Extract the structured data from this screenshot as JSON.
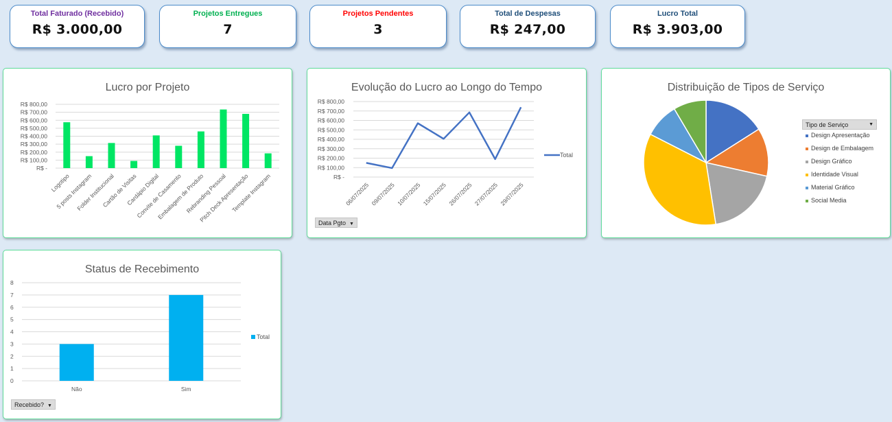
{
  "kpis": [
    {
      "label": "Total Faturado (Recebido)",
      "value": "R$ 3.000,00",
      "color": "#7030a0"
    },
    {
      "label": "Projetos Entregues",
      "value": "7",
      "color": "#00b050"
    },
    {
      "label": "Projetos Pendentes",
      "value": "3",
      "color": "#ff0000"
    },
    {
      "label": "Total de Despesas",
      "value": "R$ 247,00",
      "color": "#1f4e79"
    },
    {
      "label": "Lucro Total",
      "value": "R$ 3.903,00",
      "color": "#1f4e79"
    }
  ],
  "panels": {
    "lucro_projeto": {
      "title": "Lucro por Projeto"
    },
    "evolucao": {
      "title": "Evolução do Lucro ao Longo do Tempo",
      "legend": "Total",
      "filter": "Data Pgto"
    },
    "distribuicao": {
      "title": "Distribuição de Tipos de Serviço",
      "filter": "Tipo de Serviço"
    },
    "status": {
      "title": "Status de Recebimento",
      "legend": "Total",
      "filter": "Recebido?"
    }
  },
  "chart_data": [
    {
      "type": "bar",
      "title": "Lucro por Projeto",
      "categories": [
        "Logotipo",
        "5 posts Instagram",
        "Folder Institucional",
        "Cartão de Visitas",
        "Cardápio Digital",
        "Convite de Casamento",
        "Embalagem de Produto",
        "Rebranding Pessoal",
        "Pitch Deck Apresentação",
        "Template Instagram"
      ],
      "values": [
        575,
        150,
        315,
        90,
        410,
        280,
        460,
        735,
        680,
        185
      ],
      "yticks": [
        "R$ -",
        "R$ 100,00",
        "R$ 200,00",
        "R$ 300,00",
        "R$ 400,00",
        "R$ 500,00",
        "R$ 600,00",
        "R$ 700,00",
        "R$ 800,00"
      ],
      "ylim": [
        0,
        800
      ],
      "grid": true,
      "color": "#00e664"
    },
    {
      "type": "line",
      "title": "Evolução do Lucro ao Longo do Tempo",
      "categories": [
        "06/07/2025",
        "09/07/2025",
        "10/07/2025",
        "15/07/2025",
        "26/07/2025",
        "27/07/2025",
        "29/07/2025"
      ],
      "series": [
        {
          "name": "Total",
          "values": [
            150,
            95,
            570,
            405,
            685,
            190,
            740
          ]
        }
      ],
      "yticks": [
        "R$ -",
        "R$ 100,00",
        "R$ 200,00",
        "R$ 300,00",
        "R$ 400,00",
        "R$ 500,00",
        "R$ 600,00",
        "R$ 700,00",
        "R$ 800,00"
      ],
      "ylim": [
        0,
        800
      ],
      "grid": true,
      "legend_position": "right",
      "color": "#4472c4"
    },
    {
      "type": "pie",
      "title": "Distribuição de Tipos de Serviço",
      "legend_title": "Tipo de Serviço",
      "categories": [
        "Design Apresentação",
        "Design de Embalagem",
        "Design Gráfico",
        "Identidade Visual",
        "Material Gráfico",
        "Social Media"
      ],
      "values": [
        16,
        12.5,
        19,
        35,
        9,
        8.5
      ],
      "colors": [
        "#4472c4",
        "#ed7d31",
        "#a5a5a5",
        "#ffc000",
        "#5b9bd5",
        "#70ad47"
      ],
      "legend_position": "right"
    },
    {
      "type": "bar",
      "title": "Status de Recebimento",
      "categories": [
        "Não",
        "Sim"
      ],
      "series": [
        {
          "name": "Total",
          "values": [
            3,
            7
          ]
        }
      ],
      "yticks": [
        "0",
        "1",
        "2",
        "3",
        "4",
        "5",
        "6",
        "7",
        "8"
      ],
      "ylim": [
        0,
        8
      ],
      "grid": true,
      "legend_position": "right",
      "color": "#00b0f0"
    }
  ]
}
